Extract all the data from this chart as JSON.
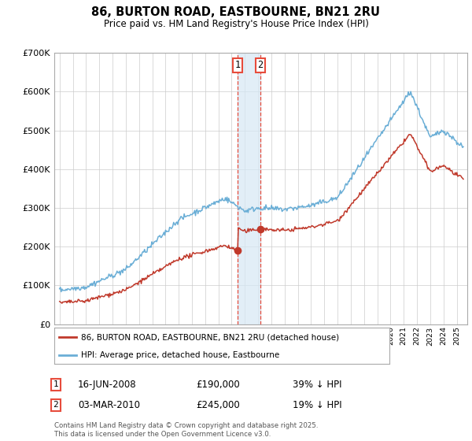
{
  "title": "86, BURTON ROAD, EASTBOURNE, BN21 2RU",
  "subtitle": "Price paid vs. HM Land Registry's House Price Index (HPI)",
  "ylim": [
    0,
    700000
  ],
  "yticks": [
    0,
    100000,
    200000,
    300000,
    400000,
    500000,
    600000,
    700000
  ],
  "xlim_left": 1994.6,
  "xlim_right": 2025.8,
  "hpi_color": "#6aaed6",
  "price_color": "#c0392b",
  "vline1_x": 2008.46,
  "vline2_x": 2010.17,
  "vline_color": "#e74c3c",
  "vline_fill_color": "#d6e8f5",
  "sale1_price_y": 190000,
  "sale2_price_y": 245000,
  "sale1_date": "16-JUN-2008",
  "sale1_price": "£190,000",
  "sale1_note": "39% ↓ HPI",
  "sale2_date": "03-MAR-2010",
  "sale2_price": "£245,000",
  "sale2_note": "19% ↓ HPI",
  "legend_label1": "86, BURTON ROAD, EASTBOURNE, BN21 2RU (detached house)",
  "legend_label2": "HPI: Average price, detached house, Eastbourne",
  "footer": "Contains HM Land Registry data © Crown copyright and database right 2025.\nThis data is licensed under the Open Government Licence v3.0.",
  "background_color": "#ffffff",
  "grid_color": "#cccccc"
}
